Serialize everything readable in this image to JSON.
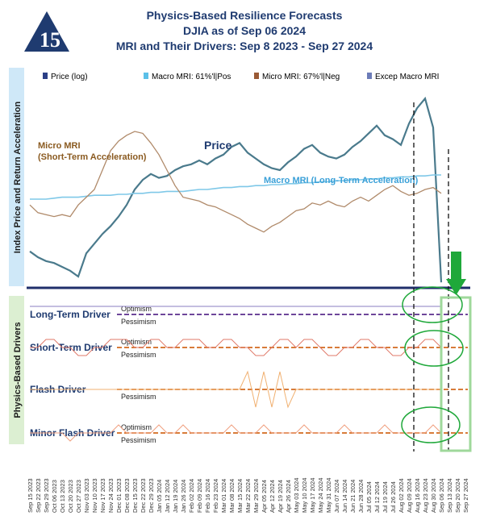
{
  "header": {
    "title_line1": "Physics-Based Resilience Forecasts",
    "title_line2": "DJIA as of Sep 06 2024",
    "title_line3": "MRI and Their Drivers: Sep 8 2023 - Sep 27 2024",
    "logo_text": "15"
  },
  "legend": [
    {
      "label": "Price (log)",
      "color": "#2b3f86"
    },
    {
      "label": "Macro MRI: 61%'l|Pos",
      "color": "#5bc0e8"
    },
    {
      "label": "Micro MRI: 67%'l|Neg",
      "color": "#9a5a35"
    },
    {
      "label": "Excep Macro MRI",
      "color": "#6c7cb8"
    }
  ],
  "labels": {
    "upper_axis": "Index Price and Return Acceleration",
    "lower_axis": "Physics-Based Drivers",
    "micro_line1": "Micro MRI",
    "micro_line2": "(Short-Term Acceleration)",
    "price": "Price",
    "macro": "Macro MRI (Long-Term Acceleration)"
  },
  "drivers": [
    {
      "name": "Long-Term Driver",
      "upper": "Optimism",
      "lower": "Pessimism"
    },
    {
      "name": "Short-Term Driver",
      "upper": "Optimism",
      "lower": "Pessimism"
    },
    {
      "name": "Flash Driver",
      "upper": "",
      "lower": "Pessimism"
    },
    {
      "name": "Minor Flash Driver",
      "upper": "Optimism",
      "lower": "Pessimism"
    }
  ],
  "colors": {
    "title": "#1f3b70",
    "price": "#4a7a8c",
    "macro": "#7fc8e8",
    "micro": "#b08a6a",
    "divider": "#1f2f6b",
    "upper_panel": "#cfe8f8",
    "lower_panel": "#dcefd2",
    "dash_orange": "#d2691e",
    "dash_purple": "#5a2d8c",
    "arrow": "#1fa83a"
  },
  "chart_data": {
    "type": "line",
    "title": "Physics-Based Resilience Forecasts",
    "dates": [
      "Sep 15 2023",
      "Sep 22 2023",
      "Sep 29 2023",
      "Oct 06 2023",
      "Oct 13 2023",
      "Oct 20 2023",
      "Oct 27 2023",
      "Nov 03 2023",
      "Nov 10 2023",
      "Nov 17 2023",
      "Nov 24 2023",
      "Dec 01 2023",
      "Dec 08 2023",
      "Dec 15 2023",
      "Dec 22 2023",
      "Dec 29 2023",
      "Jan 05 2024",
      "Jan 12 2024",
      "Jan 19 2024",
      "Jan 26 2024",
      "Feb 02 2024",
      "Feb 09 2024",
      "Feb 16 2024",
      "Feb 23 2024",
      "Mar 01 2024",
      "Mar 08 2024",
      "Mar 15 2024",
      "Mar 22 2024",
      "Mar 29 2024",
      "Apr 05 2024",
      "Apr 12 2024",
      "Apr 19 2024",
      "Apr 26 2024",
      "May 03 2024",
      "May 10 2024",
      "May 17 2024",
      "May 24 2024",
      "May 31 2024",
      "Jun 07 2024",
      "Jun 14 2024",
      "Jun 21 2024",
      "Jun 28 2024",
      "Jul 05 2024",
      "Jul 12 2024",
      "Jul 19 2024",
      "Jul 26 2024",
      "Aug 02 2024",
      "Aug 09 2024",
      "Aug 16 2024",
      "Aug 23 2024",
      "Aug 30 2024",
      "Sep 06 2024",
      "Sep 13 2024",
      "Sep 20 2024",
      "Sep 27 2024"
    ],
    "series": [
      {
        "name": "Price (log)",
        "values": [
          0.18,
          0.15,
          0.13,
          0.12,
          0.1,
          0.08,
          0.05,
          0.17,
          0.22,
          0.27,
          0.31,
          0.36,
          0.42,
          0.5,
          0.55,
          0.58,
          0.56,
          0.57,
          0.6,
          0.62,
          0.63,
          0.65,
          0.63,
          0.66,
          0.68,
          0.72,
          0.74,
          0.69,
          0.66,
          0.63,
          0.61,
          0.6,
          0.64,
          0.67,
          0.71,
          0.73,
          0.69,
          0.67,
          0.66,
          0.68,
          0.72,
          0.75,
          0.79,
          0.83,
          0.78,
          0.76,
          0.73,
          0.84,
          0.92,
          0.97,
          0.82,
          0.02,
          null,
          null,
          null
        ]
      },
      {
        "name": "Macro MRI",
        "values": [
          0.45,
          0.45,
          0.45,
          0.455,
          0.46,
          0.46,
          0.46,
          0.465,
          0.47,
          0.47,
          0.47,
          0.475,
          0.475,
          0.48,
          0.48,
          0.485,
          0.485,
          0.49,
          0.49,
          0.49,
          0.495,
          0.5,
          0.5,
          0.505,
          0.51,
          0.51,
          0.515,
          0.515,
          0.52,
          0.52,
          0.525,
          0.525,
          0.53,
          0.53,
          0.535,
          0.535,
          0.54,
          0.54,
          0.545,
          0.545,
          0.55,
          0.55,
          0.555,
          0.555,
          0.56,
          0.56,
          0.565,
          0.565,
          0.57,
          0.57,
          0.575,
          0.575,
          null,
          null,
          null
        ]
      },
      {
        "name": "Micro MRI",
        "values": [
          0.42,
          0.38,
          0.37,
          0.36,
          0.37,
          0.36,
          0.42,
          0.46,
          0.5,
          0.6,
          0.7,
          0.75,
          0.78,
          0.8,
          0.79,
          0.74,
          0.68,
          0.6,
          0.52,
          0.46,
          0.45,
          0.44,
          0.42,
          0.41,
          0.39,
          0.37,
          0.35,
          0.32,
          0.3,
          0.28,
          0.31,
          0.33,
          0.36,
          0.39,
          0.4,
          0.43,
          0.42,
          0.44,
          0.42,
          0.41,
          0.44,
          0.46,
          0.44,
          0.47,
          0.5,
          0.52,
          0.49,
          0.47,
          0.48,
          0.5,
          0.51,
          0.48,
          null,
          null,
          null
        ]
      }
    ],
    "drivers": {
      "long_term": [
        1,
        1,
        1,
        1,
        1,
        1,
        1,
        1,
        1,
        1,
        1,
        1,
        1,
        1,
        1,
        1,
        1,
        1,
        1,
        1,
        1,
        1,
        1,
        1,
        1,
        1,
        1,
        1,
        1,
        1,
        1,
        1,
        1,
        1,
        1,
        1,
        1,
        1,
        1,
        1,
        1,
        1,
        1,
        1,
        1,
        1,
        1,
        1,
        1,
        1,
        1,
        1,
        null,
        null,
        null
      ],
      "short_term": [
        0,
        0,
        1,
        1,
        0,
        0,
        -1,
        -1,
        0,
        0,
        1,
        1,
        1,
        0,
        0,
        1,
        1,
        0,
        0,
        1,
        1,
        1,
        0,
        0,
        1,
        1,
        0,
        0,
        -1,
        -1,
        0,
        1,
        1,
        0,
        1,
        1,
        0,
        -1,
        -1,
        0,
        0,
        1,
        1,
        0,
        0,
        -1,
        -1,
        0,
        0,
        1,
        1,
        0,
        null,
        null,
        null
      ],
      "flash": [
        0,
        0,
        0,
        0,
        0,
        0,
        0,
        0,
        0,
        0,
        0,
        0,
        0,
        0,
        0,
        0,
        0,
        0,
        0,
        0,
        0,
        0,
        0,
        0,
        0,
        0,
        0,
        1,
        -1,
        1,
        -1,
        1,
        -1,
        0,
        0,
        0,
        0,
        0,
        0,
        0,
        0,
        0,
        0,
        0,
        0,
        0,
        0,
        0,
        0,
        0,
        0,
        0,
        null,
        null,
        null
      ],
      "minor_flash": [
        0,
        0,
        0,
        0,
        0,
        -1,
        0,
        0,
        0,
        0,
        0,
        1,
        0,
        0,
        0,
        0,
        1,
        0,
        0,
        1,
        0,
        0,
        0,
        0,
        0,
        1,
        0,
        0,
        0,
        1,
        0,
        0,
        0,
        0,
        1,
        0,
        0,
        0,
        0,
        1,
        0,
        0,
        0,
        0,
        1,
        0,
        0,
        0,
        0,
        0,
        1,
        0,
        null,
        null,
        null
      ]
    }
  }
}
